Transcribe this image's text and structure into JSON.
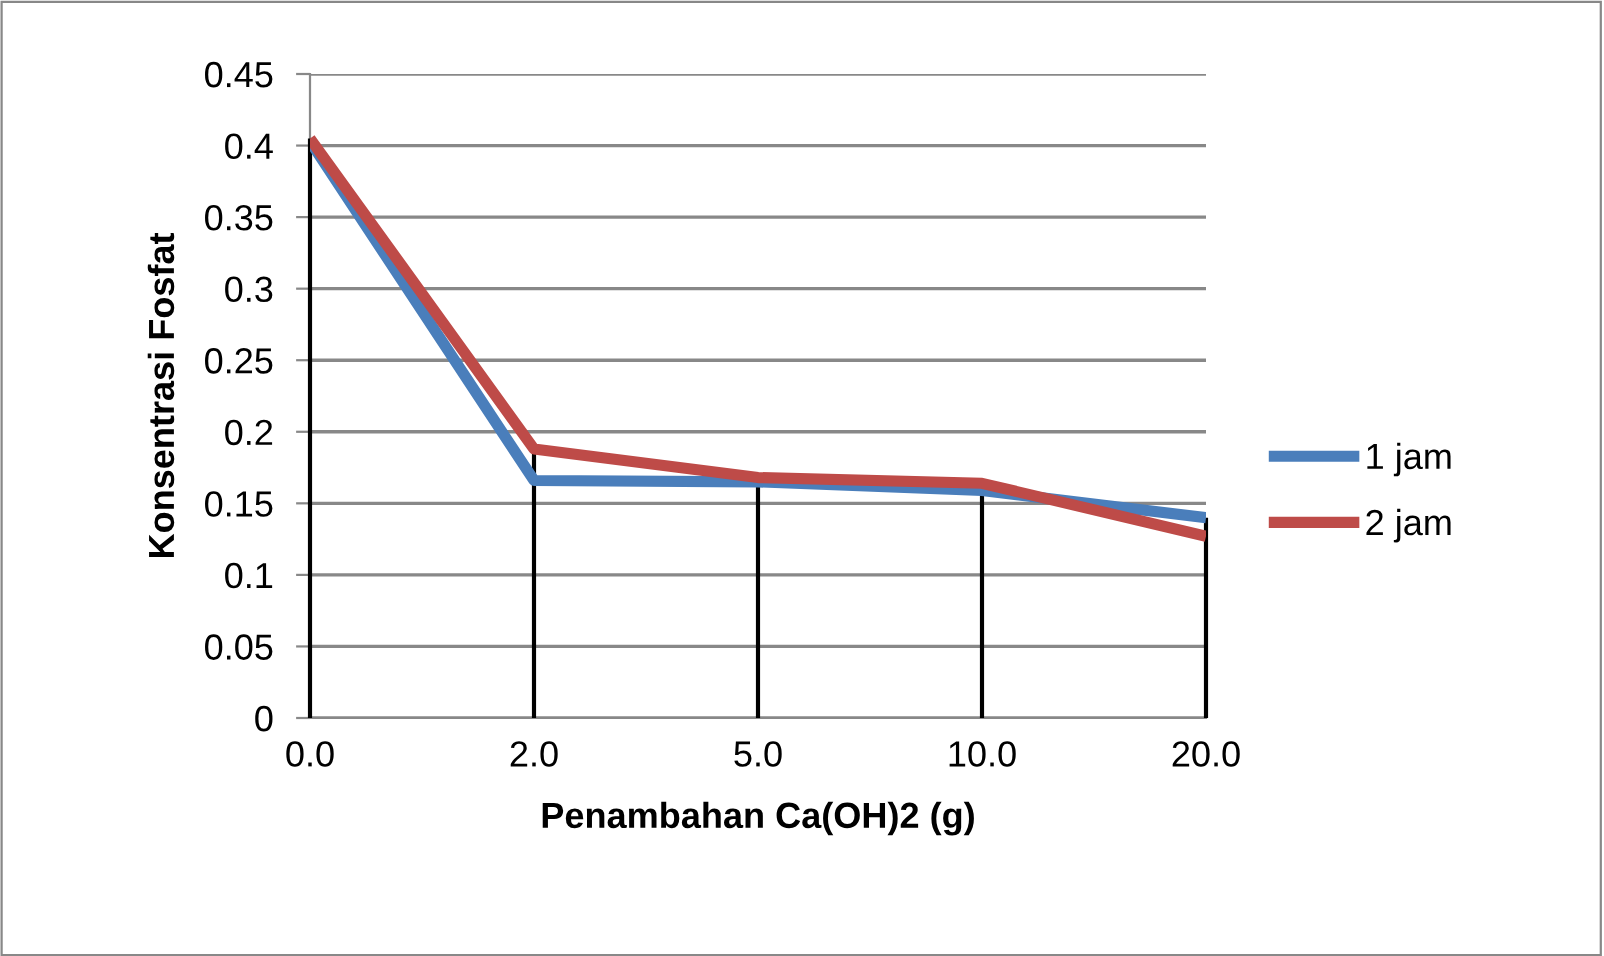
{
  "chart_data": {
    "type": "line",
    "xlabel": "Penambahan Ca(OH)2 (g)",
    "ylabel": "Konsentrasi Fosfat",
    "categories": [
      "0.0",
      "2.0",
      "5.0",
      "10.0",
      "20.0"
    ],
    "series": [
      {
        "name": "1 jam",
        "color": "#4a7ebb",
        "values": [
          0.403,
          0.166,
          0.165,
          0.159,
          0.14
        ]
      },
      {
        "name": "2 jam",
        "color": "#be4b48",
        "values": [
          0.405,
          0.188,
          0.168,
          0.164,
          0.127
        ]
      }
    ],
    "ylim": [
      0,
      0.45
    ],
    "yticks": [
      0,
      0.05,
      0.1,
      0.15,
      0.2,
      0.25,
      0.3,
      0.35,
      0.4,
      0.45
    ],
    "grid": "y",
    "legend": "right",
    "marker": "none",
    "line_style": "solid",
    "ref_lines": [
      {
        "axis": "x",
        "value": "0.0",
        "color": "#000000"
      },
      {
        "axis": "x",
        "value": "2.0",
        "color": "#000000"
      },
      {
        "axis": "x",
        "value": "5.0",
        "color": "#000000"
      },
      {
        "axis": "x",
        "value": "10.0",
        "color": "#000000"
      },
      {
        "axis": "x",
        "value": "20.0",
        "color": "#000000"
      }
    ]
  }
}
